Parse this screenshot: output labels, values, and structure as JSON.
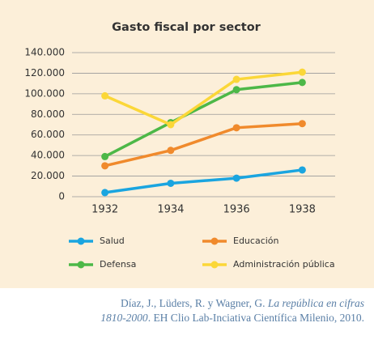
{
  "chart_data": {
    "type": "line",
    "title": "Gasto fiscal por sector",
    "categories": [
      "1932",
      "1934",
      "1936",
      "1938"
    ],
    "series": [
      {
        "name": "Salud",
        "color": "#1aa5e0",
        "values": [
          4000,
          13000,
          18000,
          26000
        ]
      },
      {
        "name": "Educación",
        "color": "#f08a2c",
        "values": [
          30000,
          45000,
          67000,
          71000
        ]
      },
      {
        "name": "Defensa",
        "color": "#4db848",
        "values": [
          39000,
          72000,
          104000,
          111000
        ]
      },
      {
        "name": "Administración pública",
        "color": "#fbd738",
        "values": [
          98000,
          70000,
          114000,
          121000
        ]
      }
    ],
    "ylim": [
      0,
      140000
    ],
    "yticks": [
      0,
      {
        "value": 20000,
        "label": "20.000"
      },
      {
        "value": 40000,
        "label": "40.000"
      },
      {
        "value": 60000,
        "label": "60.000"
      },
      {
        "value": 80000,
        "label": "80.000"
      },
      {
        "value": 100000,
        "label": "100.000"
      },
      {
        "value": 120000,
        "label": "120.000"
      },
      {
        "value": 140000,
        "label": "140.000"
      }
    ],
    "grid": true
  },
  "source": {
    "line1": "Díaz, J., Lüders, R. y Wagner, G. ",
    "line1_italic": "La república en cifras",
    "line2_italic": "1810-2000",
    "line2": ". EH Clio Lab-Inciativa Científica Milenio, 2010."
  }
}
